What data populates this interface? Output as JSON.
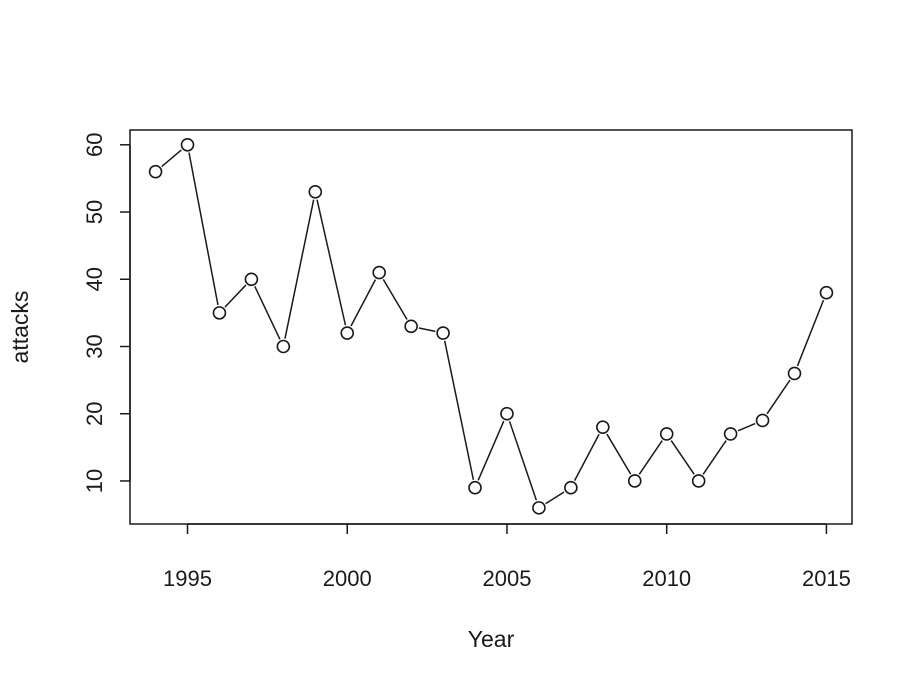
{
  "chart_data": {
    "type": "line",
    "title": "",
    "xlabel": "Year",
    "ylabel": "attacks",
    "x": [
      1994,
      1995,
      1996,
      1997,
      1998,
      1999,
      2000,
      2001,
      2002,
      2003,
      2004,
      2005,
      2006,
      2007,
      2008,
      2009,
      2010,
      2011,
      2012,
      2013,
      2014,
      2015
    ],
    "series": [
      {
        "values": [
          56,
          60,
          35,
          40,
          30,
          53,
          32,
          41,
          33,
          32,
          9,
          20,
          6,
          9,
          18,
          10,
          17,
          10,
          17,
          19,
          26,
          38
        ]
      }
    ],
    "marker": "open-circle",
    "line_style": "both-with-gaps",
    "xlim": [
      1993.2,
      2015.8
    ],
    "ylim": [
      3.6,
      62.2
    ],
    "x_ticks": [
      1995,
      2000,
      2005,
      2010,
      2015
    ],
    "y_ticks": [
      10,
      20,
      30,
      40,
      50,
      60
    ],
    "x_tick_labels": [
      "1995",
      "2000",
      "2005",
      "2010",
      "2015"
    ],
    "y_tick_labels": [
      "10",
      "20",
      "30",
      "40",
      "50",
      "60"
    ],
    "grid": false,
    "legend": "none",
    "color": "#1a1a1a"
  }
}
